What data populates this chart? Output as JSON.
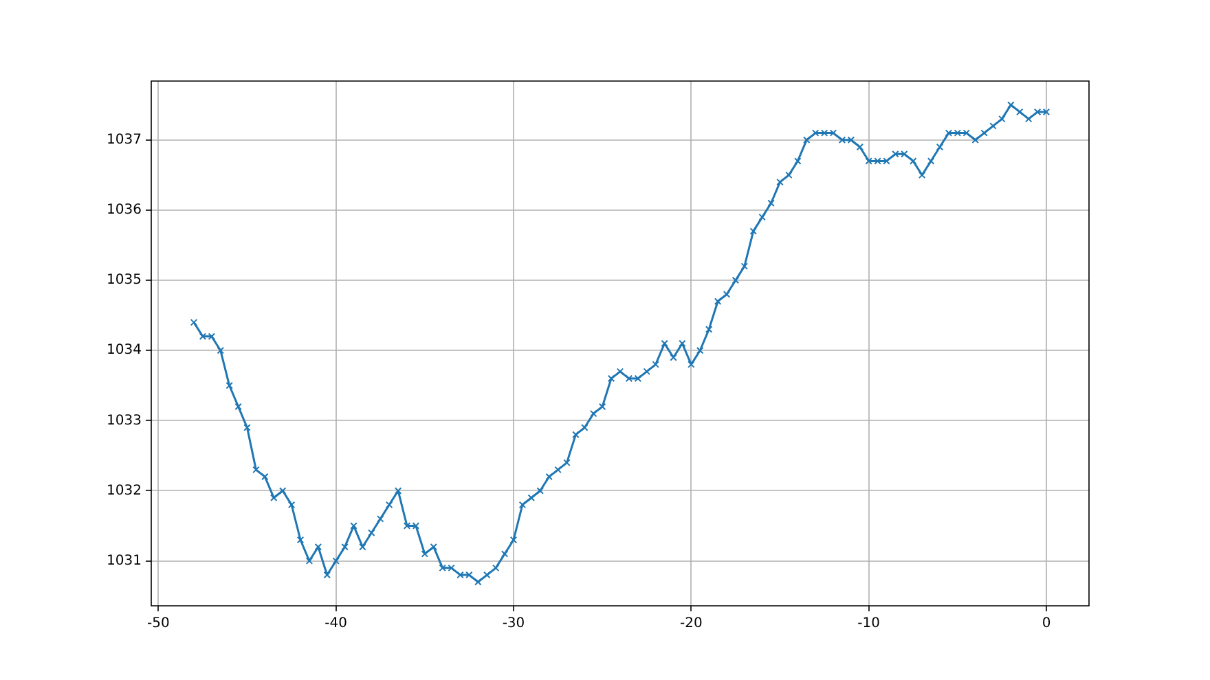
{
  "chart_data": {
    "type": "line",
    "x": [
      -48,
      -47.5,
      -47,
      -46.5,
      -46,
      -45.5,
      -45,
      -44.5,
      -44,
      -43.5,
      -43,
      -42.5,
      -42,
      -41.5,
      -41,
      -40.5,
      -40,
      -39.5,
      -39,
      -38.5,
      -38,
      -37.5,
      -37,
      -36.5,
      -36,
      -35.5,
      -35,
      -34.5,
      -34,
      -33.5,
      -33,
      -32.5,
      -32,
      -31.5,
      -31,
      -30.5,
      -30,
      -29.5,
      -29,
      -28.5,
      -28,
      -27.5,
      -27,
      -26.5,
      -26,
      -25.5,
      -25,
      -24.5,
      -24,
      -23.5,
      -23,
      -22.5,
      -22,
      -21.5,
      -21,
      -20.5,
      -20,
      -19.5,
      -19,
      -18.5,
      -18,
      -17.5,
      -17,
      -16.5,
      -16,
      -15.5,
      -15,
      -14.5,
      -14,
      -13.5,
      -13,
      -12.5,
      -12,
      -11.5,
      -11,
      -10.5,
      -10,
      -9.5,
      -9,
      -8.5,
      -8,
      -7.5,
      -7,
      -6.5,
      -6,
      -5.5,
      -5,
      -4.5,
      -4,
      -3.5,
      -3,
      -2.5,
      -2,
      -1.5,
      -1,
      -0.5,
      0
    ],
    "series": [
      {
        "color": "#1f77b4",
        "values": [
          1034.4,
          1034.2,
          1034.2,
          1034.0,
          1033.5,
          1033.2,
          1032.9,
          1032.3,
          1032.2,
          1031.9,
          1032.0,
          1031.8,
          1031.3,
          1031.0,
          1031.2,
          1030.8,
          1031.0,
          1031.2,
          1031.5,
          1031.2,
          1031.4,
          1031.6,
          1031.8,
          1032.0,
          1031.5,
          1031.5,
          1031.1,
          1031.2,
          1030.9,
          1030.9,
          1030.8,
          1030.8,
          1030.7,
          1030.8,
          1030.9,
          1031.1,
          1031.3,
          1031.8,
          1031.9,
          1032.0,
          1032.2,
          1032.3,
          1032.4,
          1032.8,
          1032.9,
          1033.1,
          1033.2,
          1033.6,
          1033.7,
          1033.6,
          1033.6,
          1033.7,
          1033.8,
          1034.1,
          1033.9,
          1034.1,
          1033.8,
          1034.0,
          1034.3,
          1034.7,
          1034.8,
          1035.0,
          1035.2,
          1035.7,
          1035.9,
          1036.1,
          1036.4,
          1036.5,
          1036.7,
          1037.0,
          1037.1,
          1037.1,
          1037.1,
          1037.0,
          1037.0,
          1036.9,
          1036.7,
          1036.7,
          1036.7,
          1036.8,
          1036.8,
          1036.7,
          1036.5,
          1036.7,
          1036.9,
          1037.1,
          1037.1,
          1037.1,
          1037.0,
          1037.1,
          1037.2,
          1037.3,
          1037.5,
          1037.4,
          1037.3,
          1037.4,
          1037.4
        ]
      }
    ],
    "xlim": [
      -50.4,
      2.4
    ],
    "xticks": [
      -50,
      -40,
      -30,
      -20,
      -10,
      0
    ],
    "ylim": [
      1030.36,
      1037.84
    ],
    "yticks": [
      1031,
      1032,
      1033,
      1034,
      1035,
      1036,
      1037
    ],
    "grid": true,
    "legend": false,
    "marker": "cross",
    "line_style": "solid"
  }
}
